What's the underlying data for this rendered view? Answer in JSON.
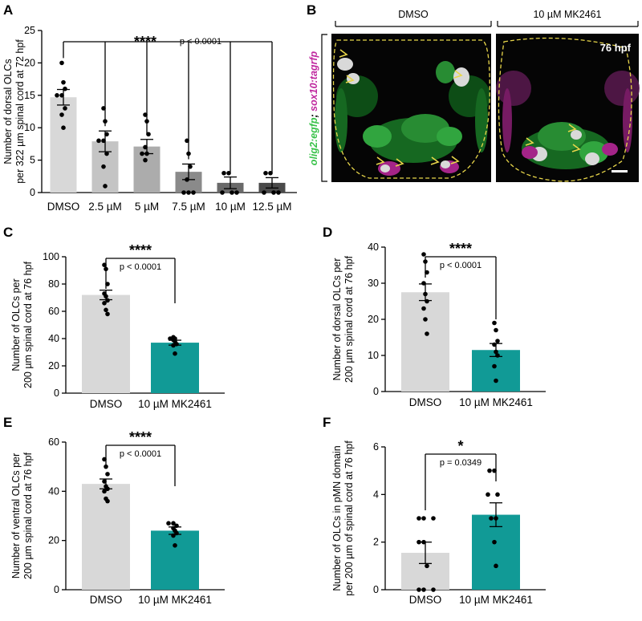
{
  "panels": {
    "A": "A",
    "B": "B",
    "C": "C",
    "D": "D",
    "E": "E",
    "F": "F"
  },
  "micrograph": {
    "conditions": [
      "DMSO",
      "10 µM MK2461"
    ],
    "timepoint": "76 hpf",
    "side_label_green": "olig2:egfp",
    "side_label_sep": "; ",
    "side_label_magenta": "sox10:tagrfp",
    "colors": {
      "green": "#39c24a",
      "magenta": "#c02aa0",
      "outline": "#e8d64a",
      "arrowhead": "#e8d64a"
    }
  },
  "colors": {
    "dmso": "#d8d8d8",
    "teal": "#119a96",
    "doseA": [
      "#d8d8d8",
      "#c4c4c4",
      "#acacac",
      "#8a8a8a",
      "#6a6a6a",
      "#4a4a4a"
    ]
  },
  "chart_data": [
    {
      "id": "A",
      "type": "bar",
      "ylabel_line1": "Number of dorsal OLCs",
      "ylabel_line2": "per 322 µm spinal cord at 72 hpf",
      "categories": [
        "DMSO",
        "2.5 µM",
        "5 µM",
        "7.5 µM",
        "10 µM",
        "12.5 µM"
      ],
      "values": [
        14.7,
        7.9,
        7.1,
        3.2,
        1.5,
        1.5
      ],
      "sem": [
        1.2,
        1.6,
        1.1,
        1.2,
        0.9,
        0.8
      ],
      "points": [
        [
          20,
          17,
          16,
          15,
          15,
          13,
          12,
          10
        ],
        [
          13,
          11,
          9,
          8,
          8,
          6,
          4,
          1
        ],
        [
          12,
          11,
          9,
          7,
          6,
          6,
          5
        ],
        [
          8,
          6,
          4,
          2,
          0,
          0,
          0
        ],
        [
          3,
          3,
          0,
          0,
          0
        ],
        [
          3,
          3,
          0,
          0,
          0
        ]
      ],
      "ylim": [
        0,
        25
      ],
      "yticks": [
        0,
        5,
        10,
        15,
        20,
        25
      ],
      "significance": "****",
      "pvalue": "p < 0.0001"
    },
    {
      "id": "C",
      "type": "bar",
      "ylabel_line1": "Number of OLCs per",
      "ylabel_line2": "200 µm spinal cord at 76 hpf",
      "categories": [
        "DMSO",
        "10 µM MK2461"
      ],
      "values": [
        72,
        37
      ],
      "sem": [
        3.5,
        1.8
      ],
      "points": [
        [
          94,
          91,
          80,
          73,
          71,
          68,
          66,
          61,
          58
        ],
        [
          41,
          40,
          40,
          39,
          38,
          36,
          35,
          29
        ]
      ],
      "ylim": [
        0,
        100
      ],
      "yticks": [
        0,
        20,
        40,
        60,
        80,
        100
      ],
      "significance": "****",
      "pvalue": "p < 0.0001"
    },
    {
      "id": "D",
      "type": "bar",
      "ylabel_line1": "Number of dorsal OLCs per",
      "ylabel_line2": "200 µm spinal cord at 76 hpf",
      "categories": [
        "DMSO",
        "10 µM MK2461"
      ],
      "values": [
        27.5,
        11.5
      ],
      "sem": [
        2.3,
        1.8
      ],
      "points": [
        [
          38,
          36,
          33,
          30,
          27,
          25,
          23,
          20,
          16
        ],
        [
          19,
          17,
          14,
          13,
          11,
          10,
          7,
          3
        ]
      ],
      "ylim": [
        0,
        40
      ],
      "yticks": [
        0,
        10,
        20,
        30,
        40
      ],
      "significance": "****",
      "pvalue": "p < 0.0001"
    },
    {
      "id": "E",
      "type": "bar",
      "ylabel_line1": "Number of ventral OLCs per",
      "ylabel_line2": "200 µm spinal cord at 76 hpf",
      "categories": [
        "DMSO",
        "10 µM MK2461"
      ],
      "values": [
        43,
        24
      ],
      "sem": [
        2.0,
        1.5
      ],
      "points": [
        [
          53,
          50,
          47,
          44,
          42,
          41,
          40,
          37,
          36
        ],
        [
          27,
          27,
          26,
          25,
          24,
          23,
          22,
          18
        ]
      ],
      "ylim": [
        0,
        60
      ],
      "yticks": [
        0,
        20,
        40,
        60
      ],
      "significance": "****",
      "pvalue": "p < 0.0001"
    },
    {
      "id": "F",
      "type": "bar",
      "ylabel_line1": "Number of OLCs in pMN domain",
      "ylabel_line2": "per 200 µm of spinal cord at 76 hpf",
      "categories": [
        "DMSO",
        "10 µM MK2461"
      ],
      "values": [
        1.55,
        3.15
      ],
      "sem": [
        0.45,
        0.5
      ],
      "points": [
        [
          3,
          3,
          3,
          2,
          2,
          1,
          0,
          0,
          0
        ],
        [
          5,
          5,
          4,
          4,
          3,
          3,
          2,
          1
        ]
      ],
      "ylim": [
        0,
        6
      ],
      "yticks": [
        0,
        2,
        4,
        6
      ],
      "significance": "*",
      "pvalue": "p = 0.0349"
    }
  ]
}
